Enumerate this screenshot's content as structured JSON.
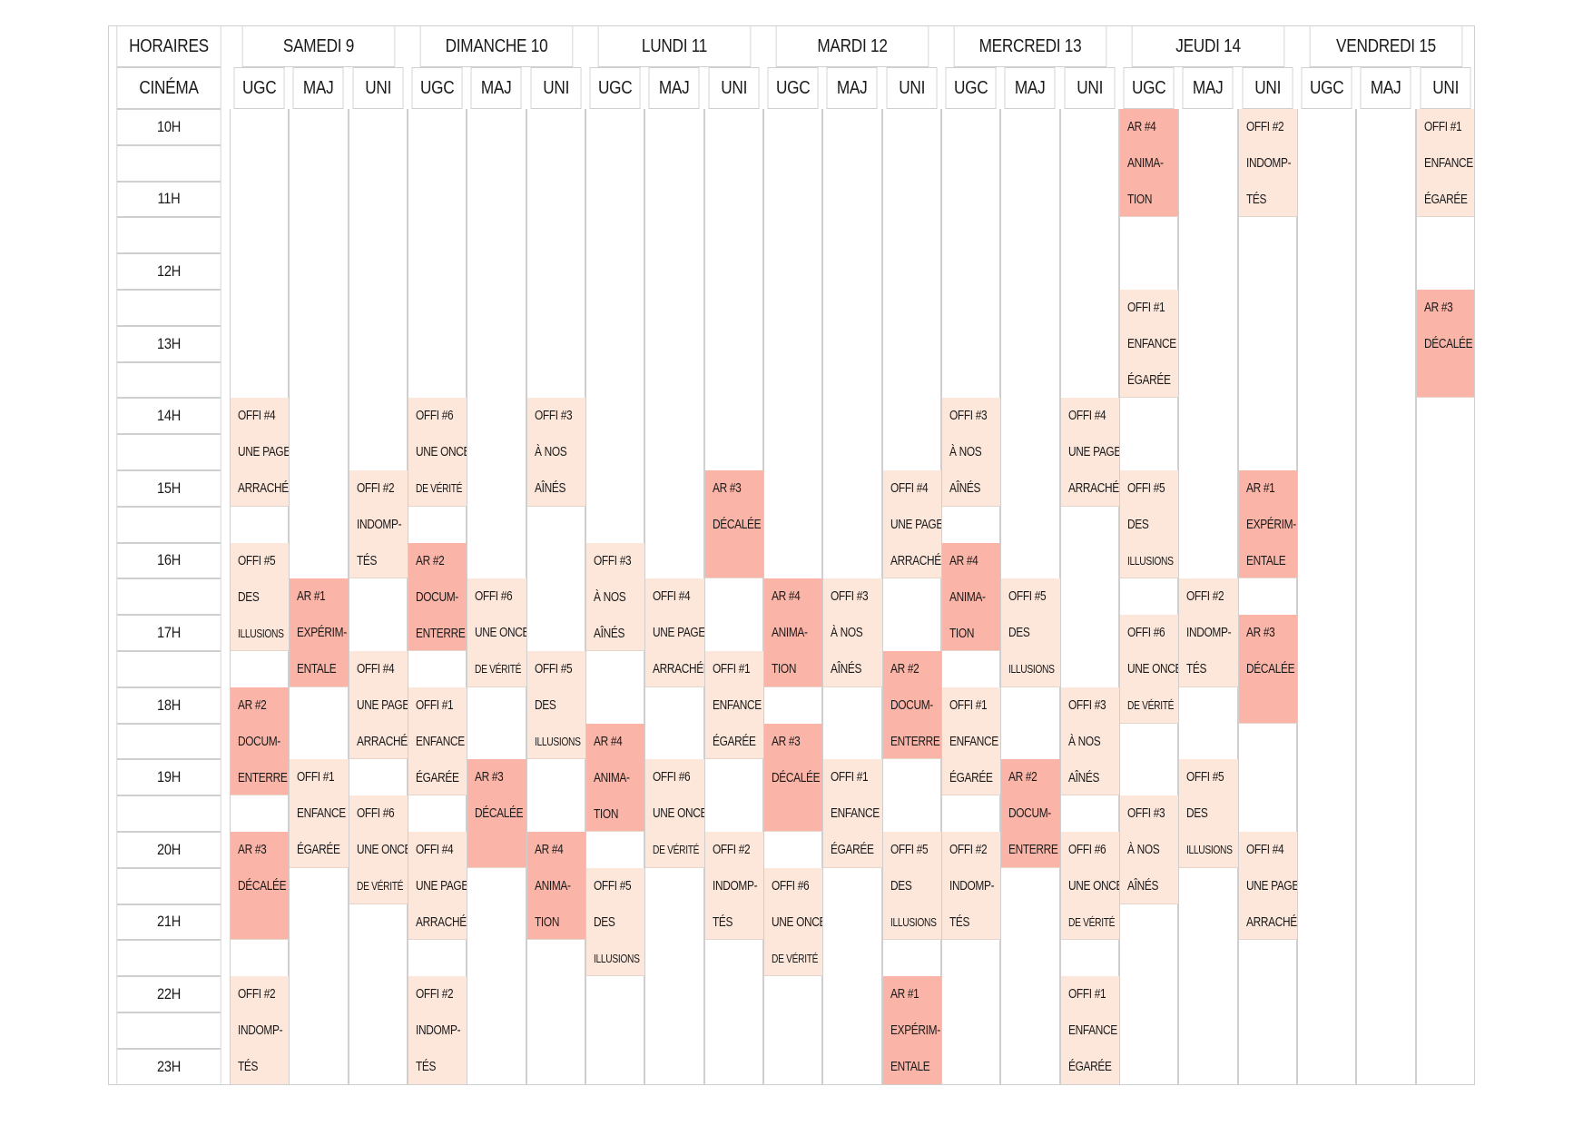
{
  "header": {
    "corner": "HORAIRES",
    "cinema_label": "CINÉMA",
    "days": [
      "SAMEDI 9",
      "DIMANCHE 10",
      "LUNDI 11",
      "MARDI 12",
      "MERCREDI 13",
      "JEUDI 14",
      "VENDREDI 15"
    ],
    "cinemas": [
      "UGC",
      "MAJ",
      "UNI"
    ]
  },
  "times": [
    "10H",
    "",
    "11H",
    "",
    "12H",
    "",
    "13H",
    "",
    "14H",
    "",
    "15H",
    "",
    "16H",
    "",
    "17H",
    "",
    "18H",
    "",
    "19H",
    "",
    "20H",
    "",
    "21H",
    "",
    "22H",
    "",
    "23H"
  ],
  "colors": {
    "offi": "#fde6da",
    "ar": "#fbb5a8",
    "grid": "#cfcfcf"
  },
  "events": [
    {
      "col": 0,
      "start": "14:00",
      "end": "15:30",
      "kind": "offi",
      "lines": [
        "OFFI #4",
        "UNE PAGE",
        "ARRACHÉE"
      ]
    },
    {
      "col": 0,
      "start": "16:00",
      "end": "17:30",
      "kind": "offi",
      "lines": [
        "OFFI #5",
        "DES",
        "ILLUSIONS"
      ]
    },
    {
      "col": 0,
      "start": "18:00",
      "end": "19:30",
      "kind": "ar",
      "lines": [
        "AR #2",
        "DOCUM-",
        "ENTERRE"
      ]
    },
    {
      "col": 0,
      "start": "20:00",
      "end": "21:30",
      "kind": "ar",
      "lines": [
        "AR #3",
        "DÉCALÉE"
      ]
    },
    {
      "col": 0,
      "start": "22:00",
      "end": "23:30",
      "kind": "offi",
      "lines": [
        "OFFI #2",
        "INDOMP-",
        "TÉS"
      ]
    },
    {
      "col": 1,
      "start": "16:30",
      "end": "18:00",
      "kind": "ar",
      "lines": [
        "AR #1",
        "EXPÉRIM-",
        "ENTALE"
      ]
    },
    {
      "col": 1,
      "start": "19:00",
      "end": "20:30",
      "kind": "offi",
      "lines": [
        "OFFI #1",
        "ENFANCE",
        "ÉGARÉE"
      ]
    },
    {
      "col": 2,
      "start": "15:00",
      "end": "16:30",
      "kind": "offi",
      "lines": [
        "OFFI #2",
        "INDOMP-",
        "TÉS"
      ]
    },
    {
      "col": 2,
      "start": "17:30",
      "end": "19:00",
      "kind": "offi",
      "lines": [
        "OFFI #4",
        "UNE PAGE",
        "ARRACHÉE"
      ]
    },
    {
      "col": 2,
      "start": "19:30",
      "end": "21:00",
      "kind": "offi",
      "lines": [
        "OFFI #6",
        "UNE ONCE",
        "DE VÉRITÉ"
      ]
    },
    {
      "col": 3,
      "start": "14:00",
      "end": "15:30",
      "kind": "offi",
      "lines": [
        "OFFI #6",
        "UNE ONCE",
        "DE VÉRITÉ"
      ]
    },
    {
      "col": 3,
      "start": "16:00",
      "end": "17:30",
      "kind": "ar",
      "lines": [
        "AR #2",
        "DOCUM-",
        "ENTERRE"
      ]
    },
    {
      "col": 3,
      "start": "18:00",
      "end": "19:30",
      "kind": "offi",
      "lines": [
        "OFFI #1",
        "ENFANCE",
        "ÉGARÉE"
      ]
    },
    {
      "col": 3,
      "start": "20:00",
      "end": "21:30",
      "kind": "offi",
      "lines": [
        "OFFI #4",
        "UNE PAGE",
        "ARRACHÉE"
      ]
    },
    {
      "col": 3,
      "start": "22:00",
      "end": "23:30",
      "kind": "offi",
      "lines": [
        "OFFI #2",
        "INDOMP-",
        "TÉS"
      ]
    },
    {
      "col": 4,
      "start": "16:30",
      "end": "18:00",
      "kind": "offi",
      "lines": [
        "OFFI #6",
        "UNE ONCE",
        "DE VÉRITÉ"
      ]
    },
    {
      "col": 4,
      "start": "19:00",
      "end": "20:30",
      "kind": "ar",
      "lines": [
        "AR #3",
        "DÉCALÉE"
      ]
    },
    {
      "col": 5,
      "start": "14:00",
      "end": "15:30",
      "kind": "offi",
      "lines": [
        "OFFI #3",
        "À NOS",
        "AÎNÉS"
      ]
    },
    {
      "col": 5,
      "start": "17:30",
      "end": "19:00",
      "kind": "offi",
      "lines": [
        "OFFI #5",
        "DES",
        "ILLUSIONS"
      ]
    },
    {
      "col": 5,
      "start": "20:00",
      "end": "21:30",
      "kind": "ar",
      "lines": [
        "AR #4",
        "ANIMA-",
        "TION"
      ]
    },
    {
      "col": 6,
      "start": "16:00",
      "end": "17:30",
      "kind": "offi",
      "lines": [
        "OFFI #3",
        "À NOS",
        "AÎNÉS"
      ]
    },
    {
      "col": 6,
      "start": "18:30",
      "end": "20:00",
      "kind": "ar",
      "lines": [
        "AR #4",
        "ANIMA-",
        "TION"
      ]
    },
    {
      "col": 6,
      "start": "20:30",
      "end": "22:00",
      "kind": "offi",
      "lines": [
        "OFFI #5",
        "DES",
        "ILLUSIONS"
      ]
    },
    {
      "col": 7,
      "start": "16:30",
      "end": "18:00",
      "kind": "offi",
      "lines": [
        "OFFI #4",
        "UNE PAGE",
        "ARRACHÉE"
      ]
    },
    {
      "col": 7,
      "start": "19:00",
      "end": "20:30",
      "kind": "offi",
      "lines": [
        "OFFI #6",
        "UNE ONCE",
        "DE VÉRITÉ"
      ]
    },
    {
      "col": 8,
      "start": "15:00",
      "end": "16:30",
      "kind": "ar",
      "lines": [
        "AR #3",
        "DÉCALÉE"
      ]
    },
    {
      "col": 8,
      "start": "17:30",
      "end": "19:00",
      "kind": "offi",
      "lines": [
        "OFFI #1",
        "ENFANCE",
        "ÉGARÉE"
      ]
    },
    {
      "col": 8,
      "start": "20:00",
      "end": "21:30",
      "kind": "offi",
      "lines": [
        "OFFI #2",
        "INDOMP-",
        "TÉS"
      ]
    },
    {
      "col": 9,
      "start": "16:30",
      "end": "18:00",
      "kind": "ar",
      "lines": [
        "AR #4",
        "ANIMA-",
        "TION"
      ]
    },
    {
      "col": 9,
      "start": "18:30",
      "end": "20:00",
      "kind": "ar",
      "lines": [
        "AR #3",
        "DÉCALÉE"
      ]
    },
    {
      "col": 9,
      "start": "20:30",
      "end": "22:00",
      "kind": "offi",
      "lines": [
        "OFFI #6",
        "UNE ONCE",
        "DE VÉRITÉ"
      ]
    },
    {
      "col": 10,
      "start": "16:30",
      "end": "18:00",
      "kind": "offi",
      "lines": [
        "OFFI #3",
        "À NOS",
        "AÎNÉS"
      ]
    },
    {
      "col": 10,
      "start": "19:00",
      "end": "20:30",
      "kind": "offi",
      "lines": [
        "OFFI #1",
        "ENFANCE",
        "ÉGARÉE"
      ]
    },
    {
      "col": 11,
      "start": "15:00",
      "end": "16:30",
      "kind": "offi",
      "lines": [
        "OFFI #4",
        "UNE PAGE",
        "ARRACHÉE"
      ]
    },
    {
      "col": 11,
      "start": "17:30",
      "end": "19:00",
      "kind": "ar",
      "lines": [
        "AR #2",
        "DOCUM-",
        "ENTERRE"
      ]
    },
    {
      "col": 11,
      "start": "20:00",
      "end": "21:30",
      "kind": "offi",
      "lines": [
        "OFFI #5",
        "DES",
        "ILLUSIONS"
      ]
    },
    {
      "col": 11,
      "start": "22:00",
      "end": "23:30",
      "kind": "ar",
      "lines": [
        "AR #1",
        "EXPÉRIM-",
        "ENTALE"
      ]
    },
    {
      "col": 12,
      "start": "14:00",
      "end": "15:30",
      "kind": "offi",
      "lines": [
        "OFFI #3",
        "À NOS",
        "AÎNÉS"
      ]
    },
    {
      "col": 12,
      "start": "16:00",
      "end": "17:30",
      "kind": "ar",
      "lines": [
        "AR #4",
        "ANIMA-",
        "TION"
      ]
    },
    {
      "col": 12,
      "start": "18:00",
      "end": "19:30",
      "kind": "offi",
      "lines": [
        "OFFI #1",
        "ENFANCE",
        "ÉGARÉE"
      ]
    },
    {
      "col": 12,
      "start": "20:00",
      "end": "21:30",
      "kind": "offi",
      "lines": [
        "OFFI #2",
        "INDOMP-",
        "TÉS"
      ]
    },
    {
      "col": 13,
      "start": "16:30",
      "end": "18:00",
      "kind": "offi",
      "lines": [
        "OFFI #5",
        "DES",
        "ILLUSIONS"
      ]
    },
    {
      "col": 13,
      "start": "19:00",
      "end": "20:30",
      "kind": "ar",
      "lines": [
        "AR #2",
        "DOCUM-",
        "ENTERRE"
      ]
    },
    {
      "col": 14,
      "start": "14:00",
      "end": "15:30",
      "kind": "offi",
      "lines": [
        "OFFI #4",
        "UNE PAGE",
        "ARRACHÉE"
      ]
    },
    {
      "col": 14,
      "start": "18:00",
      "end": "19:30",
      "kind": "offi",
      "lines": [
        "OFFI #3",
        "À NOS",
        "AÎNÉS"
      ]
    },
    {
      "col": 14,
      "start": "20:00",
      "end": "21:30",
      "kind": "offi",
      "lines": [
        "OFFI #6",
        "UNE ONCE",
        "DE VÉRITÉ"
      ]
    },
    {
      "col": 14,
      "start": "22:00",
      "end": "23:30",
      "kind": "offi",
      "lines": [
        "OFFI #1",
        "ENFANCE",
        "ÉGARÉE"
      ]
    },
    {
      "col": 15,
      "start": "10:00",
      "end": "11:30",
      "kind": "ar",
      "lines": [
        "AR #4",
        "ANIMA-",
        "TION"
      ]
    },
    {
      "col": 15,
      "start": "12:30",
      "end": "14:00",
      "kind": "offi",
      "lines": [
        "OFFI #1",
        "ENFANCE",
        "ÉGARÉE"
      ]
    },
    {
      "col": 15,
      "start": "15:00",
      "end": "16:30",
      "kind": "offi",
      "lines": [
        "OFFI #5",
        "DES",
        "ILLUSIONS"
      ]
    },
    {
      "col": 15,
      "start": "17:00",
      "end": "18:30",
      "kind": "offi",
      "lines": [
        "OFFI #6",
        "UNE ONCE",
        "DE VÉRITÉ"
      ]
    },
    {
      "col": 15,
      "start": "19:30",
      "end": "21:00",
      "kind": "offi",
      "lines": [
        "OFFI #3",
        "À NOS",
        "AÎNÉS"
      ]
    },
    {
      "col": 16,
      "start": "16:30",
      "end": "18:00",
      "kind": "offi",
      "lines": [
        "OFFI #2",
        "INDOMP-",
        "TÉS"
      ]
    },
    {
      "col": 16,
      "start": "19:00",
      "end": "20:30",
      "kind": "offi",
      "lines": [
        "OFFI #5",
        "DES",
        "ILLUSIONS"
      ]
    },
    {
      "col": 17,
      "start": "10:00",
      "end": "11:30",
      "kind": "offi",
      "lines": [
        "OFFI #2",
        "INDOMP-",
        "TÉS"
      ]
    },
    {
      "col": 17,
      "start": "15:00",
      "end": "16:30",
      "kind": "ar",
      "lines": [
        "AR #1",
        "EXPÉRIM-",
        "ENTALE"
      ]
    },
    {
      "col": 17,
      "start": "17:00",
      "end": "18:30",
      "kind": "ar",
      "lines": [
        "AR #3",
        "DÉCALÉE"
      ]
    },
    {
      "col": 17,
      "start": "20:00",
      "end": "21:30",
      "kind": "offi",
      "lines": [
        "OFFI #4",
        "UNE PAGE",
        "ARRACHÉE"
      ]
    },
    {
      "col": 20,
      "start": "10:00",
      "end": "11:30",
      "kind": "offi",
      "lines": [
        "OFFI #1",
        "ENFANCE",
        "ÉGARÉE"
      ]
    },
    {
      "col": 20,
      "start": "12:30",
      "end": "14:00",
      "kind": "ar",
      "lines": [
        "AR #3",
        "DÉCALÉE"
      ]
    }
  ]
}
